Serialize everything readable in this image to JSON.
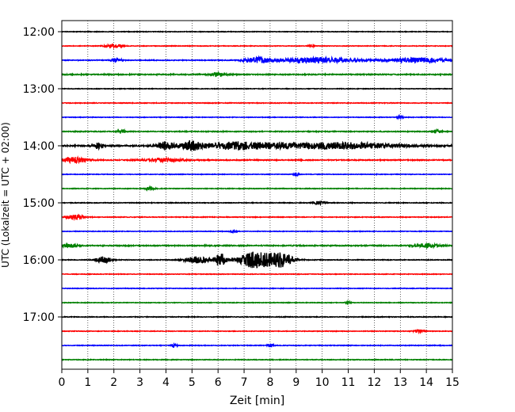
{
  "chart_data": {
    "type": "line",
    "title": "",
    "xlabel": "Zeit  [min]",
    "ylabel": "UTC (Lokalzeit = UTC + 02:00)",
    "xlim": [
      0,
      15
    ],
    "x_ticks": [
      "0",
      "1",
      "2",
      "3",
      "4",
      "5",
      "6",
      "7",
      "8",
      "9",
      "10",
      "11",
      "12",
      "13",
      "14",
      "15"
    ],
    "y_tick_labels": [
      "12:00",
      "13:00",
      "14:00",
      "15:00",
      "16:00",
      "17:00"
    ],
    "y_tick_rows": [
      0,
      4,
      8,
      12,
      16,
      20
    ],
    "grid_x": true,
    "colors": [
      "#000000",
      "#ff0000",
      "#0000ff",
      "#008000"
    ],
    "series": [
      {
        "row": 0,
        "color": "#000000",
        "noise": 0.35,
        "events": []
      },
      {
        "row": 1,
        "color": "#ff0000",
        "noise": 0.35,
        "events": [
          {
            "t": 2.0,
            "amp": 2.5,
            "w": 0.3
          },
          {
            "t": 9.6,
            "amp": 2.0,
            "w": 0.1
          }
        ]
      },
      {
        "row": 2,
        "color": "#0000ff",
        "noise": 0.45,
        "events": [
          {
            "t": 2.1,
            "amp": 2.0,
            "w": 0.2
          },
          {
            "t": 7.5,
            "amp": 3.5,
            "w": 0.5
          },
          {
            "t": 9.8,
            "amp": 3.5,
            "w": 1.4
          },
          {
            "t": 13.6,
            "amp": 3.0,
            "w": 1.2
          }
        ]
      },
      {
        "row": 3,
        "color": "#008000",
        "noise": 0.6,
        "events": [
          {
            "t": 6.0,
            "amp": 2.0,
            "w": 0.3
          }
        ]
      },
      {
        "row": 4,
        "color": "#000000",
        "noise": 0.35,
        "events": []
      },
      {
        "row": 5,
        "color": "#ff0000",
        "noise": 0.4,
        "events": []
      },
      {
        "row": 6,
        "color": "#0000ff",
        "noise": 0.35,
        "events": [
          {
            "t": 13.0,
            "amp": 2.0,
            "w": 0.1
          }
        ]
      },
      {
        "row": 7,
        "color": "#008000",
        "noise": 0.5,
        "events": [
          {
            "t": 2.3,
            "amp": 2.5,
            "w": 0.15
          },
          {
            "t": 14.4,
            "amp": 2.5,
            "w": 0.15
          }
        ]
      },
      {
        "row": 8,
        "color": "#000000",
        "noise": 0.7,
        "events": [
          {
            "t": 1.4,
            "amp": 3.5,
            "w": 0.2
          },
          {
            "t": 4.0,
            "amp": 5.0,
            "w": 0.35
          },
          {
            "t": 5.0,
            "amp": 5.0,
            "w": 0.4
          },
          {
            "t": 6.8,
            "amp": 4.5,
            "w": 1.4
          },
          {
            "t": 10.5,
            "amp": 4.0,
            "w": 2.5
          }
        ]
      },
      {
        "row": 9,
        "color": "#ff0000",
        "noise": 0.55,
        "events": [
          {
            "t": 0.5,
            "amp": 3.5,
            "w": 0.5
          },
          {
            "t": 4.0,
            "amp": 2.0,
            "w": 0.8
          }
        ]
      },
      {
        "row": 10,
        "color": "#0000ff",
        "noise": 0.35,
        "events": [
          {
            "t": 9.0,
            "amp": 2.5,
            "w": 0.1
          }
        ]
      },
      {
        "row": 11,
        "color": "#008000",
        "noise": 0.4,
        "events": [
          {
            "t": 3.4,
            "amp": 2.5,
            "w": 0.15
          }
        ]
      },
      {
        "row": 12,
        "color": "#000000",
        "noise": 0.4,
        "events": [
          {
            "t": 9.9,
            "amp": 2.5,
            "w": 0.2
          }
        ]
      },
      {
        "row": 13,
        "color": "#ff0000",
        "noise": 0.4,
        "events": [
          {
            "t": 0.5,
            "amp": 3.0,
            "w": 0.3
          }
        ]
      },
      {
        "row": 14,
        "color": "#0000ff",
        "noise": 0.35,
        "events": [
          {
            "t": 6.6,
            "amp": 2.0,
            "w": 0.1
          }
        ]
      },
      {
        "row": 15,
        "color": "#008000",
        "noise": 0.6,
        "events": [
          {
            "t": 0.3,
            "amp": 2.5,
            "w": 0.3
          },
          {
            "t": 14.0,
            "amp": 2.5,
            "w": 0.5
          }
        ]
      },
      {
        "row": 16,
        "color": "#000000",
        "noise": 0.4,
        "events": [
          {
            "t": 1.6,
            "amp": 4.0,
            "w": 0.3
          },
          {
            "t": 5.2,
            "amp": 4.0,
            "w": 0.5
          },
          {
            "t": 6.1,
            "amp": 9.0,
            "w": 0.2
          },
          {
            "t": 7.4,
            "amp": 10.0,
            "w": 0.6
          },
          {
            "t": 8.4,
            "amp": 9.0,
            "w": 0.5
          }
        ]
      },
      {
        "row": 17,
        "color": "#ff0000",
        "noise": 0.35,
        "events": []
      },
      {
        "row": 18,
        "color": "#0000ff",
        "noise": 0.35,
        "events": []
      },
      {
        "row": 19,
        "color": "#008000",
        "noise": 0.35,
        "events": [
          {
            "t": 11.0,
            "amp": 2.0,
            "w": 0.1
          }
        ]
      },
      {
        "row": 20,
        "color": "#000000",
        "noise": 0.4,
        "events": []
      },
      {
        "row": 21,
        "color": "#ff0000",
        "noise": 0.35,
        "events": [
          {
            "t": 13.7,
            "amp": 2.0,
            "w": 0.2
          }
        ]
      },
      {
        "row": 22,
        "color": "#0000ff",
        "noise": 0.4,
        "events": [
          {
            "t": 4.3,
            "amp": 2.0,
            "w": 0.1
          },
          {
            "t": 8.0,
            "amp": 2.5,
            "w": 0.1
          }
        ]
      },
      {
        "row": 23,
        "color": "#008000",
        "noise": 0.4,
        "events": []
      }
    ]
  }
}
